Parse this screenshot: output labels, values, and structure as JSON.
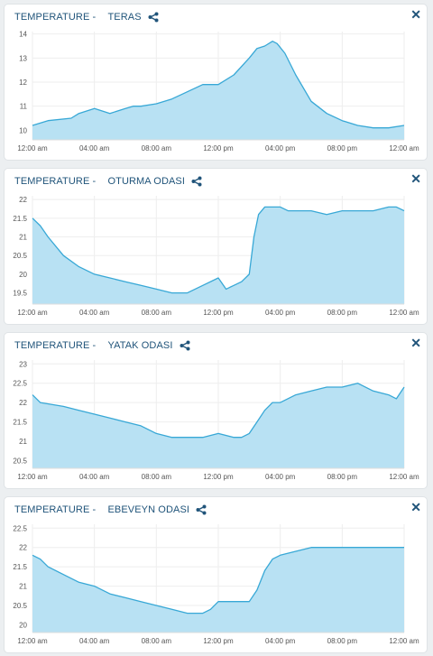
{
  "colors": {
    "line": "#38a8d6",
    "fill": "#b8e1f3",
    "title": "#20547a",
    "grid": "#eeeeee"
  },
  "panels": [
    {
      "label": "TEMPERATURE -",
      "room": "TERAS",
      "share_icon": "share-icon",
      "close_icon": "close-icon",
      "close_glyph": "✕"
    },
    {
      "label": "TEMPERATURE -",
      "room": "OTURMA ODASI",
      "share_icon": "share-icon",
      "close_icon": "close-icon",
      "close_glyph": "✕"
    },
    {
      "label": "TEMPERATURE -",
      "room": "YATAK ODASI",
      "share_icon": "share-icon",
      "close_icon": "close-icon",
      "close_glyph": "✕"
    },
    {
      "label": "TEMPERATURE -",
      "room": "EBEVEYN ODASI",
      "share_icon": "share-icon",
      "close_icon": "close-icon",
      "close_glyph": "✕"
    }
  ],
  "chart_data": [
    {
      "type": "area",
      "x_tick_labels": [
        "12:00 am",
        "04:00 am",
        "08:00 am",
        "12:00 pm",
        "04:00 pm",
        "08:00 pm",
        "12:00 am"
      ],
      "y_ticks": [
        "10",
        "11",
        "12",
        "13",
        "14"
      ],
      "ylim": [
        9.6,
        14.1
      ],
      "grid": true,
      "x": [
        0,
        1,
        2.5,
        3,
        4,
        4.5,
        5,
        6,
        6.5,
        7,
        8,
        9,
        10,
        11,
        12,
        13,
        14,
        14.5,
        15,
        15.5,
        15.8,
        16.3,
        17,
        18,
        19,
        20,
        21,
        22,
        23,
        24
      ],
      "values": [
        10.2,
        10.4,
        10.5,
        10.7,
        10.9,
        10.8,
        10.7,
        10.9,
        11,
        11,
        11.1,
        11.3,
        11.6,
        11.9,
        11.9,
        12.3,
        13,
        13.4,
        13.5,
        13.7,
        13.6,
        13.2,
        12.3,
        11.2,
        10.7,
        10.4,
        10.2,
        10.1,
        10.1,
        10.2
      ]
    },
    {
      "type": "area",
      "x_tick_labels": [
        "12:00 am",
        "04:00 am",
        "08:00 am",
        "12:00 pm",
        "04:00 pm",
        "08:00 pm",
        "12:00 am"
      ],
      "y_ticks": [
        "19.5",
        "20",
        "20.5",
        "21",
        "21.5",
        "22"
      ],
      "ylim": [
        19.2,
        22.1
      ],
      "grid": true,
      "x": [
        0,
        0.5,
        1,
        2,
        3,
        4,
        5,
        6,
        7,
        8,
        9,
        10,
        11,
        12,
        12.5,
        13,
        13.5,
        14,
        14.3,
        14.6,
        15,
        16,
        16.5,
        17,
        18,
        19,
        20,
        21,
        22,
        23,
        23.5,
        24
      ],
      "values": [
        21.5,
        21.3,
        21,
        20.5,
        20.2,
        20,
        19.9,
        19.8,
        19.7,
        19.6,
        19.5,
        19.5,
        19.7,
        19.9,
        19.6,
        19.7,
        19.8,
        20,
        21,
        21.6,
        21.8,
        21.8,
        21.7,
        21.7,
        21.7,
        21.6,
        21.7,
        21.7,
        21.7,
        21.8,
        21.8,
        21.7
      ]
    },
    {
      "type": "area",
      "x_tick_labels": [
        "12:00 am",
        "04:00 am",
        "08:00 am",
        "12:00 pm",
        "04:00 pm",
        "08:00 pm",
        "12:00 am"
      ],
      "y_ticks": [
        "20.5",
        "21",
        "21.5",
        "22",
        "22.5",
        "23"
      ],
      "ylim": [
        20.3,
        23.1
      ],
      "grid": true,
      "x": [
        0,
        0.5,
        2,
        3,
        4,
        5,
        6,
        7,
        8,
        9,
        10,
        11,
        12,
        13,
        13.5,
        14,
        14.5,
        15,
        15.5,
        16,
        17,
        18,
        19,
        20,
        21,
        22,
        23,
        23.5,
        24
      ],
      "values": [
        22.2,
        22,
        21.9,
        21.8,
        21.7,
        21.6,
        21.5,
        21.4,
        21.2,
        21.1,
        21.1,
        21.1,
        21.2,
        21.1,
        21.1,
        21.2,
        21.5,
        21.8,
        22,
        22,
        22.2,
        22.3,
        22.4,
        22.4,
        22.5,
        22.3,
        22.2,
        22.1,
        22.4
      ]
    },
    {
      "type": "area",
      "x_tick_labels": [
        "12:00 am",
        "04:00 am",
        "08:00 am",
        "12:00 pm",
        "04:00 pm",
        "08:00 pm",
        "12:00 am"
      ],
      "y_ticks": [
        "20",
        "20.5",
        "21",
        "21.5",
        "22",
        "22.5"
      ],
      "ylim": [
        19.8,
        22.6
      ],
      "grid": true,
      "x": [
        0,
        0.5,
        1,
        2,
        3,
        4,
        5,
        6,
        7,
        8,
        9,
        10,
        11,
        11.5,
        12,
        13,
        14,
        14.5,
        15,
        15.5,
        16,
        17,
        18,
        19,
        20,
        21,
        22,
        23,
        24
      ],
      "values": [
        21.8,
        21.7,
        21.5,
        21.3,
        21.1,
        21,
        20.8,
        20.7,
        20.6,
        20.5,
        20.4,
        20.3,
        20.3,
        20.4,
        20.6,
        20.6,
        20.6,
        20.9,
        21.4,
        21.7,
        21.8,
        21.9,
        22,
        22,
        22,
        22,
        22,
        22,
        22
      ]
    }
  ]
}
